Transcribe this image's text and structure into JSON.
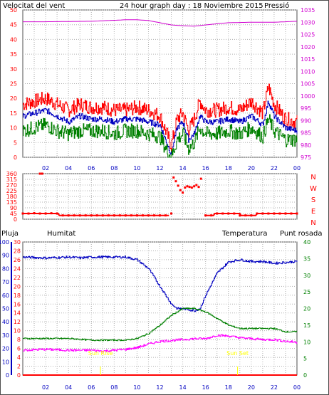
{
  "colors": {
    "frame": "#4d4d4d",
    "grid": "#b0b0b0",
    "wind_max": "#ff0000",
    "wind_avg": "#0000c0",
    "wind_min": "#008000",
    "pressure": "#d000d0",
    "title": "#0000c0",
    "direction": "#ff0000",
    "humidity": "#0000c0",
    "temperature": "#008000",
    "dewpoint": "#ff00ff",
    "rain": "#ff0000",
    "sun": "#ffff00"
  },
  "header": {
    "wind_title": "Velocitat del vent",
    "chart_title": "24 hour graph day : 18 Noviembre 2015",
    "pressure_title": "Pressió"
  },
  "bottom_header": {
    "rain": "Pluja",
    "humidity": "Humitat",
    "temperature": "Temperatura",
    "dewpoint": "Punt rosada"
  },
  "x_tick_labels": [
    "02",
    "04",
    "06",
    "08",
    "10",
    "12",
    "14",
    "16",
    "18",
    "20",
    "22",
    "00"
  ],
  "direction_letters": [
    "N",
    "W",
    "S",
    "E",
    "N"
  ],
  "sun_labels": {
    "sunrise": "Sun Rise",
    "sunset": "Sun Set"
  },
  "chart_data": [
    {
      "type": "line",
      "title": "24 hour graph day : 18 Noviembre 2015",
      "x_unit": "hour",
      "xlim": [
        0,
        24
      ],
      "left_axis": {
        "label": "Velocitat del vent",
        "ylim": [
          0,
          50
        ],
        "ticks": [
          0,
          5,
          10,
          15,
          20,
          25,
          30,
          35,
          40,
          45,
          50
        ]
      },
      "right_axis": {
        "label": "Pressió",
        "ylim": [
          975,
          1035
        ],
        "ticks": [
          975,
          980,
          985,
          990,
          995,
          1000,
          1005,
          1010,
          1015,
          1020,
          1025,
          1030,
          1035
        ]
      },
      "series": [
        {
          "name": "wind max",
          "axis": "left",
          "x": [
            0,
            1,
            2,
            3,
            4,
            5,
            6,
            7,
            8,
            9,
            10,
            11,
            12,
            12.5,
            13,
            13.5,
            14,
            14.5,
            15,
            15.5,
            16,
            17,
            18,
            19,
            20,
            21,
            21.5,
            22,
            23,
            24
          ],
          "y": [
            18,
            19,
            20,
            18,
            16,
            18,
            17,
            17,
            16,
            16,
            17,
            16,
            14,
            9,
            4,
            13,
            15,
            9,
            13,
            19,
            16,
            16,
            17,
            16,
            19,
            15,
            24,
            18,
            13,
            12
          ]
        },
        {
          "name": "wind avg",
          "axis": "left",
          "x": [
            0,
            1,
            2,
            3,
            4,
            5,
            6,
            7,
            8,
            9,
            10,
            11,
            12,
            12.5,
            13,
            13.5,
            14,
            14.5,
            15,
            15.5,
            16,
            17,
            18,
            19,
            20,
            21,
            21.5,
            22,
            23,
            24
          ],
          "y": [
            14,
            15,
            16,
            14,
            12,
            14,
            13,
            13,
            12,
            13,
            13,
            12,
            11,
            6,
            1,
            10,
            12,
            6,
            8,
            14,
            12,
            12,
            13,
            12,
            14,
            11,
            19,
            14,
            10,
            9
          ]
        },
        {
          "name": "wind min",
          "axis": "left",
          "x": [
            0,
            1,
            2,
            3,
            4,
            5,
            6,
            7,
            8,
            9,
            10,
            11,
            12,
            12.5,
            13,
            13.5,
            14,
            14.5,
            15,
            15.5,
            16,
            17,
            18,
            19,
            20,
            21,
            21.5,
            22,
            23,
            24
          ],
          "y": [
            9,
            10,
            11,
            9,
            8,
            9,
            9,
            9,
            8,
            9,
            9,
            8,
            7,
            3,
            0,
            6,
            8,
            3,
            5,
            10,
            8,
            8,
            9,
            8,
            10,
            7,
            13,
            9,
            6,
            6
          ]
        },
        {
          "name": "pressure",
          "axis": "right",
          "x": [
            0,
            2,
            4,
            6,
            8,
            9,
            10,
            11,
            12,
            13,
            14,
            15,
            16,
            17,
            18,
            20,
            22,
            24
          ],
          "y": [
            1030.2,
            1030.2,
            1030.3,
            1030.4,
            1030.8,
            1031.0,
            1031.0,
            1030.7,
            1029.8,
            1028.9,
            1028.6,
            1028.4,
            1028.9,
            1029.4,
            1029.8,
            1030.0,
            1030.0,
            1030.4
          ]
        }
      ]
    },
    {
      "type": "scatter",
      "xlim": [
        0,
        24
      ],
      "ylabel": "",
      "ylim": [
        0,
        360
      ],
      "y_ticks": [
        0,
        45,
        90,
        135,
        180,
        225,
        270,
        315,
        360
      ],
      "series": [
        {
          "name": "wind direction",
          "x": [
            0,
            0.5,
            1,
            1.5,
            2,
            2.5,
            3,
            3.5,
            4,
            4.5,
            5,
            5.5,
            6,
            6.5,
            7,
            7.5,
            8,
            8.5,
            9,
            9.5,
            10,
            10.5,
            11,
            11.5,
            12,
            12.5,
            13,
            13.2,
            13.4,
            13.6,
            13.8,
            14,
            14.2,
            14.4,
            14.6,
            14.8,
            15,
            15.2,
            15.4,
            15.6,
            16,
            16.5,
            17,
            17.5,
            18,
            18.5,
            19,
            19.5,
            20,
            20.5,
            21,
            21.5,
            22,
            22.5,
            23,
            23.5,
            24,
            1.5,
            1.7
          ],
          "y": [
            45,
            45,
            48,
            45,
            45,
            47,
            45,
            30,
            30,
            30,
            30,
            30,
            30,
            30,
            30,
            30,
            30,
            30,
            30,
            30,
            30,
            30,
            30,
            30,
            30,
            30,
            45,
            330,
            300,
            265,
            230,
            210,
            250,
            260,
            255,
            250,
            260,
            270,
            255,
            320,
            30,
            30,
            45,
            45,
            45,
            45,
            30,
            30,
            30,
            45,
            45,
            45,
            45,
            45,
            45,
            45,
            45,
            360,
            360
          ]
        }
      ]
    },
    {
      "type": "line",
      "xlim": [
        0,
        24
      ],
      "axes": [
        {
          "label": "Pluja",
          "ylim": [
            0,
            100
          ],
          "ticks": [
            0,
            10,
            20,
            30,
            40,
            50,
            60,
            70,
            80,
            90,
            100
          ]
        },
        {
          "label": "Humitat",
          "ylim": [
            0,
            30
          ],
          "ticks": [
            0,
            2,
            4,
            6,
            8,
            10,
            12,
            14,
            16,
            18,
            20,
            22,
            24,
            26,
            28,
            30
          ]
        },
        {
          "label": "Temperatura",
          "ylim": [
            0,
            40
          ],
          "ticks": [
            0,
            5,
            10,
            15,
            20,
            25,
            30,
            35,
            40
          ]
        },
        {
          "label": "Punt rosada"
        }
      ],
      "series": [
        {
          "name": "humidity",
          "axis": "Humitat",
          "x": [
            0,
            2,
            4,
            5,
            6,
            7,
            8,
            9,
            10,
            11,
            12,
            13,
            13.5,
            14,
            15,
            15.5,
            16,
            17,
            18,
            19,
            20,
            21,
            22,
            23,
            24
          ],
          "y": [
            26.6,
            26.4,
            26.6,
            26.4,
            26.6,
            26.6,
            26.6,
            26.6,
            26.0,
            24.0,
            20.0,
            16.0,
            15.0,
            15.0,
            14.5,
            15.0,
            18.0,
            23.0,
            25.5,
            26.0,
            25.6,
            25.6,
            25.2,
            25.4,
            25.6
          ]
        },
        {
          "name": "temperature",
          "axis": "Temperatura",
          "x": [
            0,
            2,
            4,
            6,
            8,
            9,
            10,
            11,
            12,
            13,
            14,
            15,
            16,
            17,
            18,
            19,
            20,
            21,
            22,
            23,
            24
          ],
          "y": [
            11,
            11,
            11,
            10.5,
            10.5,
            10.5,
            11,
            12.5,
            15,
            18,
            20,
            20,
            19,
            17,
            15,
            14,
            14,
            14,
            14,
            13,
            13
          ]
        },
        {
          "name": "dewpoint",
          "axis": "Humitat",
          "x": [
            0,
            2,
            4,
            6,
            7,
            8,
            9,
            10,
            11,
            12,
            13,
            14,
            15,
            16,
            17,
            18,
            19,
            20,
            21,
            22,
            23,
            24
          ],
          "y": [
            5.6,
            5.8,
            5.6,
            5.6,
            5.4,
            5.6,
            5.8,
            6.2,
            7.0,
            7.6,
            7.8,
            8.0,
            8.2,
            8.2,
            9.0,
            8.8,
            8.4,
            8.2,
            8.0,
            8.0,
            7.6,
            7.4
          ]
        },
        {
          "name": "rain",
          "axis": "Pluja",
          "x": [
            0,
            24
          ],
          "y": [
            0,
            0
          ]
        }
      ],
      "annotations": [
        {
          "text": "Sun Rise",
          "x": 6.8
        },
        {
          "text": "Sun Set",
          "x": 18.8
        }
      ]
    }
  ]
}
